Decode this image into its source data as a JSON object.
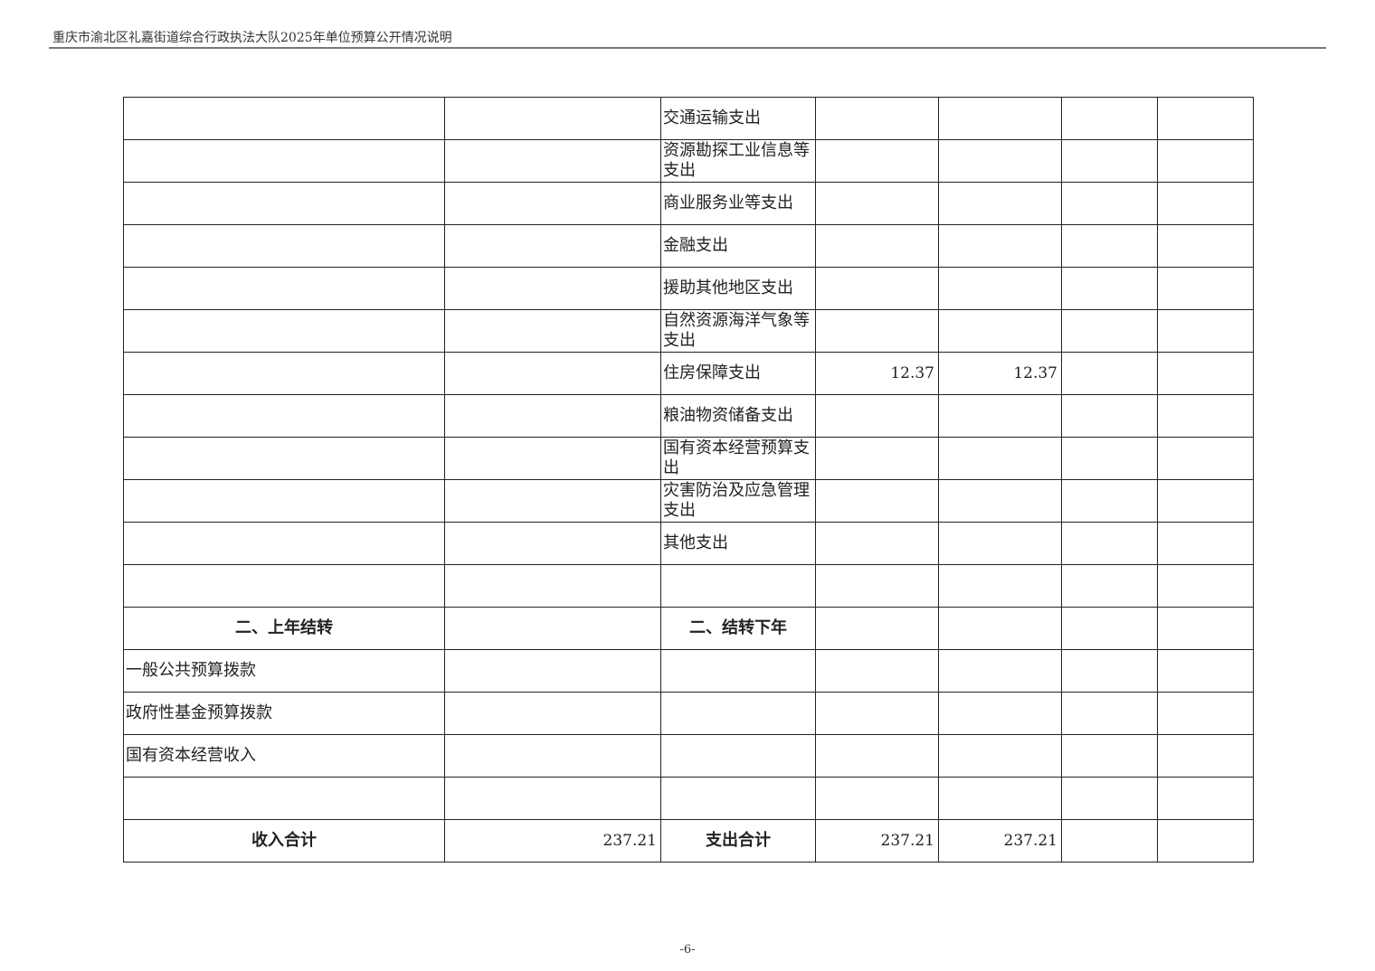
{
  "header": {
    "title": "重庆市渝北区礼嘉街道综合行政执法大队2025年单位预算公开情况说明"
  },
  "table": {
    "rows": [
      [
        "",
        "",
        "交通运输支出",
        "",
        "",
        "",
        ""
      ],
      [
        "",
        "",
        "资源勘探工业信息等支出",
        "",
        "",
        "",
        ""
      ],
      [
        "",
        "",
        "商业服务业等支出",
        "",
        "",
        "",
        ""
      ],
      [
        "",
        "",
        "金融支出",
        "",
        "",
        "",
        ""
      ],
      [
        "",
        "",
        "援助其他地区支出",
        "",
        "",
        "",
        ""
      ],
      [
        "",
        "",
        "自然资源海洋气象等支出",
        "",
        "",
        "",
        ""
      ],
      [
        "",
        "",
        "住房保障支出",
        "12.37",
        "12.37",
        "",
        ""
      ],
      [
        "",
        "",
        "粮油物资储备支出",
        "",
        "",
        "",
        ""
      ],
      [
        "",
        "",
        "国有资本经营预算支出",
        "",
        "",
        "",
        ""
      ],
      [
        "",
        "",
        "灾害防治及应急管理支出",
        "",
        "",
        "",
        ""
      ],
      [
        "",
        "",
        "其他支出",
        "",
        "",
        "",
        ""
      ],
      [
        "",
        "",
        "",
        "",
        "",
        "",
        ""
      ],
      [
        "二、上年结转",
        "",
        "二、结转下年",
        "",
        "",
        "",
        ""
      ],
      [
        "一般公共预算拨款",
        "",
        "",
        "",
        "",
        "",
        ""
      ],
      [
        "政府性基金预算拨款",
        "",
        "",
        "",
        "",
        "",
        ""
      ],
      [
        "国有资本经营收入",
        "",
        "",
        "",
        "",
        "",
        ""
      ],
      [
        "",
        "",
        "",
        "",
        "",
        "",
        ""
      ],
      [
        "收入合计",
        "237.21",
        "支出合计",
        "237.21",
        "237.21",
        "",
        ""
      ]
    ],
    "bold_rows": [
      12,
      17
    ]
  },
  "footer": {
    "page_number": "-6-"
  }
}
